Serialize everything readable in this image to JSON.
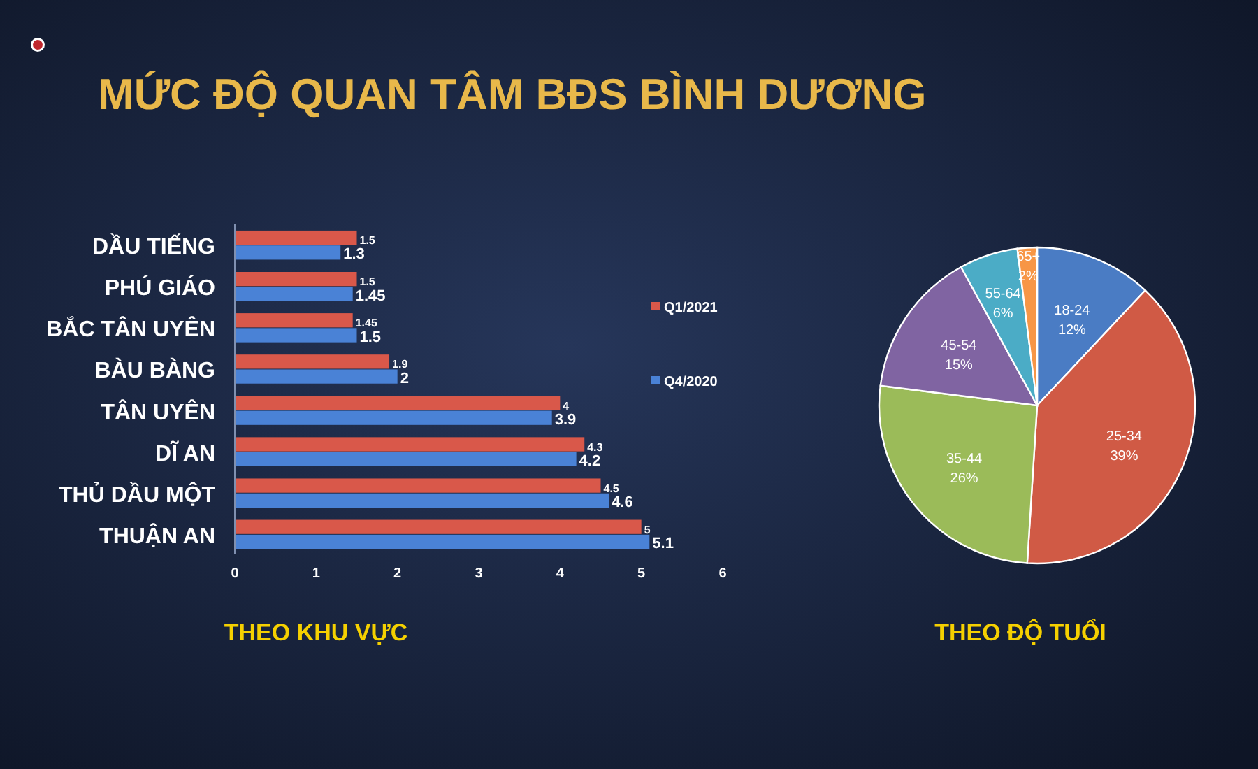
{
  "chart_data": [
    {
      "type": "bar",
      "orientation": "horizontal",
      "title": "MỨC ĐỘ QUAN TÂM BĐS BÌNH DƯƠNG",
      "xlabel": "THEO KHU VỰC",
      "categories": [
        "DẦU TIẾNG",
        "PHÚ GIÁO",
        "BẮC TÂN UYÊN",
        "BÀU BÀNG",
        "TÂN UYÊN",
        "DĨ AN",
        "THỦ DẦU MỘT",
        "THUẬN AN"
      ],
      "series": [
        {
          "name": "Q1/2021",
          "color": "#d9584a",
          "values": [
            1.5,
            1.5,
            1.45,
            1.9,
            4,
            4.3,
            4.5,
            5
          ]
        },
        {
          "name": "Q4/2020",
          "color": "#4a82d6",
          "values": [
            1.3,
            1.45,
            1.5,
            2,
            3.9,
            4.2,
            4.6,
            5.1
          ]
        }
      ],
      "xlim": [
        0,
        6
      ],
      "xticks": [
        0,
        1,
        2,
        3,
        4,
        5,
        6
      ],
      "data_labels": true,
      "legend": "right"
    },
    {
      "type": "pie",
      "title": "THEO ĐỘ TUỔI",
      "categories": [
        "18-24",
        "25-34",
        "35-44",
        "45-54",
        "55-64",
        "65+"
      ],
      "values": [
        12,
        39,
        26,
        15,
        6,
        2
      ],
      "colors": [
        "#4a7cc4",
        "#d05a45",
        "#9bbb59",
        "#8064a2",
        "#4bacc6",
        "#f79646"
      ],
      "value_labels": [
        "12%",
        "39%",
        "26%",
        "15%",
        "6%",
        "2%"
      ]
    }
  ]
}
